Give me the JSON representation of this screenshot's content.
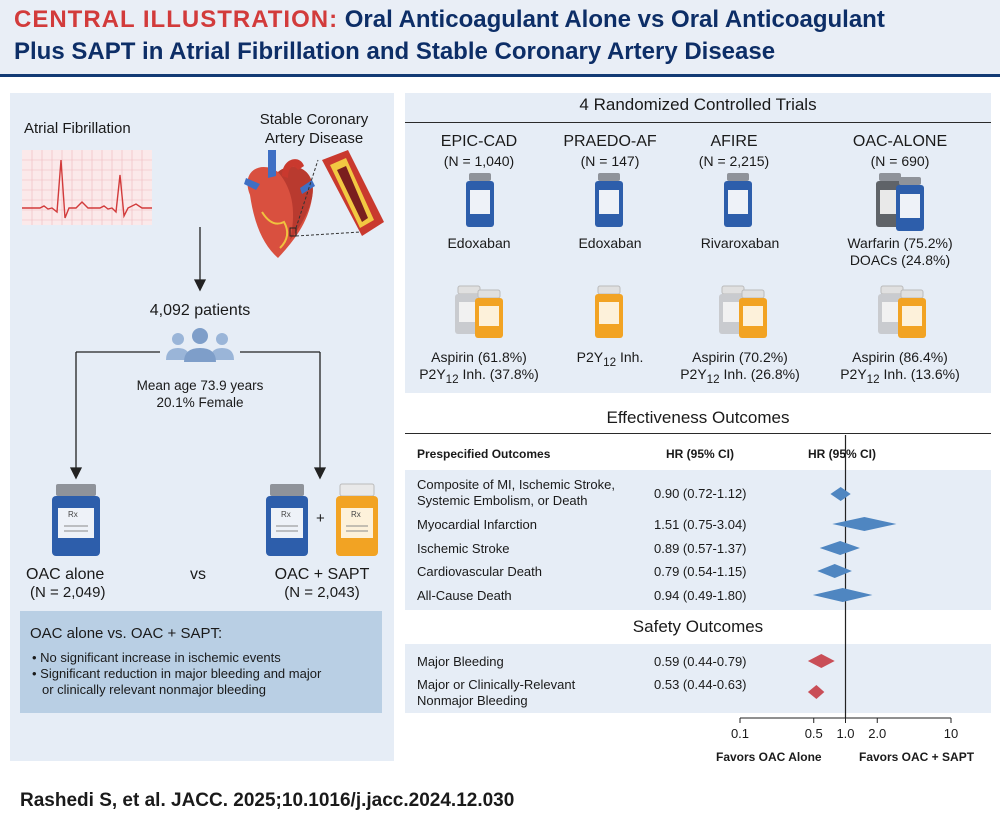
{
  "header": {
    "label": "CENTRAL ILLUSTRATION:",
    "title_line1": "Oral Anticoagulant Alone vs Oral Anticoagulant",
    "title_line2": "Plus SAPT in Atrial Fibrillation and Stable Coronary Artery Disease"
  },
  "left": {
    "af_label": "Atrial Fibrillation",
    "cad_label_1": "Stable Coronary",
    "cad_label_2": "Artery Disease",
    "patients": "4,092 patients",
    "mean_age": "Mean age 73.9 years",
    "female": "20.1% Female",
    "oac_alone": "OAC alone",
    "oac_alone_n": "(N = 2,049)",
    "vs": "vs",
    "oac_sapt": "OAC + SAPT",
    "oac_sapt_n": "(N = 2,043)",
    "plus": "+",
    "summary_title": "OAC alone vs. OAC + SAPT:",
    "summary_bullets": [
      "• No significant increase in ischemic events",
      "• Significant reduction in major bleeding and major",
      "or clinically relevant nonmajor bleeding"
    ],
    "rx": "Rx"
  },
  "rct": {
    "title": "4 Randomized Controlled Trials",
    "trials": [
      {
        "name": "EPIC-CAD",
        "n": "(N = 1,040)",
        "oac": "Edoxaban",
        "antiplatelet_1": "Aspirin (61.8%)",
        "p2y_pct": "Inh. (37.8%)"
      },
      {
        "name": "PRAEDO-AF",
        "n": "(N = 147)",
        "oac": "Edoxaban",
        "antiplatelet_1": "",
        "p2y_pct": "Inh."
      },
      {
        "name": "AFIRE",
        "n": "(N = 2,215)",
        "oac": "Rivaroxaban",
        "antiplatelet_1": "Aspirin (70.2%)",
        "p2y_pct": "Inh. (26.8%)"
      },
      {
        "name": "OAC-ALONE",
        "n": "(N = 690)",
        "oac": "Warfarin (75.2%)",
        "oac_2": "DOACs (24.8%)",
        "antiplatelet_1": "Aspirin (86.4%)",
        "p2y_pct": "Inh. (13.6%)"
      }
    ],
    "p2y": "P2Y",
    "p2y_sub": "12"
  },
  "forest": {
    "effectiveness_title": "Effectiveness Outcomes",
    "safety_title": "Safety Outcomes",
    "col_outcome": "Prespecified Outcomes",
    "col_hr": "HR (95% CI)",
    "col_plot": "HR (95% CI)",
    "effectiveness_rows": [
      {
        "label_1": "Composite of MI, Ischemic Stroke,",
        "label_2": "Systemic Embolism, or Death",
        "hr_text": "0.90 (0.72-1.12)",
        "hr": 0.9,
        "lo": 0.72,
        "hi": 1.12
      },
      {
        "label_1": "Myocardial Infarction",
        "label_2": "",
        "hr_text": "1.51 (0.75-3.04)",
        "hr": 1.51,
        "lo": 0.75,
        "hi": 3.04
      },
      {
        "label_1": "Ischemic Stroke",
        "label_2": "",
        "hr_text": "0.89 (0.57-1.37)",
        "hr": 0.89,
        "lo": 0.57,
        "hi": 1.37
      },
      {
        "label_1": "Cardiovascular Death",
        "label_2": "",
        "hr_text": "0.79 (0.54-1.15)",
        "hr": 0.79,
        "lo": 0.54,
        "hi": 1.15
      },
      {
        "label_1": "All-Cause Death",
        "label_2": "",
        "hr_text": "0.94 (0.49-1.80)",
        "hr": 0.94,
        "lo": 0.49,
        "hi": 1.8
      }
    ],
    "safety_rows": [
      {
        "label_1": "Major Bleeding",
        "label_2": "",
        "hr_text": "0.59 (0.44-0.79)",
        "hr": 0.59,
        "lo": 0.44,
        "hi": 0.79
      },
      {
        "label_1": "Major or Clinically-Relevant",
        "label_2": "Nonmajor Bleeding",
        "hr_text": "0.53 (0.44-0.63)",
        "hr": 0.53,
        "lo": 0.44,
        "hi": 0.63
      }
    ],
    "axis_ticks": [
      "0.1",
      "0.5",
      "1.0",
      "2.0",
      "10"
    ],
    "axis_scale": "log",
    "favors_left": "Favors OAC Alone",
    "favors_right": "Favors OAC + SAPT",
    "effect_color": "#4f86c1",
    "safety_color": "#c94e57"
  },
  "footer": {
    "citation": "Rashedi S, et al. JACC. 2025;10.1016/j.jacc.2024.12.030"
  }
}
